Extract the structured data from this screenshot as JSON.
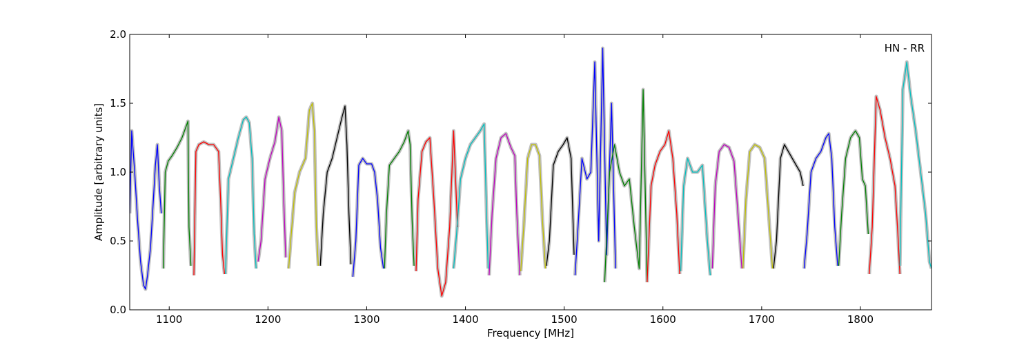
{
  "chart_data": {
    "type": "line",
    "title": "",
    "xlabel": "Frequency [MHz]",
    "ylabel": "Amplitude [arbitrary units]",
    "annotation": "HN - RR",
    "xlim": [
      1060,
      1872
    ],
    "ylim": [
      0.0,
      2.0
    ],
    "x_ticks": [
      1100,
      1200,
      1300,
      1400,
      1500,
      1600,
      1700,
      1800
    ],
    "x_tick_labels": [
      "1100",
      "1200",
      "1300",
      "1400",
      "1500",
      "1600",
      "1700",
      "1800"
    ],
    "y_ticks": [
      0.0,
      0.5,
      1.0,
      1.5,
      2.0
    ],
    "y_tick_labels": [
      "0.0",
      "0.5",
      "1.0",
      "1.5",
      "2.0"
    ],
    "grid": false,
    "background_trace_color": "#c0c0c0",
    "series": [
      {
        "color": "#0000ff",
        "x": [
          1060,
          1062,
          1065,
          1068,
          1071,
          1074,
          1076,
          1078,
          1081,
          1084,
          1086,
          1088,
          1090,
          1092
        ],
        "y": [
          0.7,
          1.3,
          1.0,
          0.65,
          0.35,
          0.18,
          0.15,
          0.25,
          0.45,
          0.8,
          1.05,
          1.2,
          0.9,
          0.7
        ]
      },
      {
        "color": "#008000",
        "x": [
          1094,
          1096,
          1099,
          1103,
          1108,
          1113,
          1117,
          1119,
          1120,
          1122
        ],
        "y": [
          0.3,
          1.0,
          1.08,
          1.12,
          1.18,
          1.25,
          1.33,
          1.37,
          0.6,
          0.32
        ]
      },
      {
        "color": "#ff0000",
        "x": [
          1125,
          1127,
          1130,
          1135,
          1140,
          1145,
          1150,
          1152,
          1154,
          1156
        ],
        "y": [
          0.25,
          1.15,
          1.2,
          1.22,
          1.2,
          1.2,
          1.15,
          0.8,
          0.4,
          0.26
        ]
      },
      {
        "color": "#00bfbf",
        "x": [
          1157,
          1160,
          1165,
          1170,
          1175,
          1178,
          1181,
          1184,
          1186,
          1188
        ],
        "y": [
          0.26,
          0.95,
          1.1,
          1.25,
          1.38,
          1.4,
          1.36,
          1.1,
          0.55,
          0.3
        ]
      },
      {
        "color": "#bf00bf",
        "x": [
          1190,
          1193,
          1197,
          1202,
          1207,
          1211,
          1214,
          1216,
          1218
        ],
        "y": [
          0.35,
          0.5,
          0.95,
          1.1,
          1.22,
          1.4,
          1.3,
          0.8,
          0.38
        ]
      },
      {
        "color": "#bfbf00",
        "x": [
          1221,
          1223,
          1227,
          1232,
          1238,
          1242,
          1245,
          1247,
          1249,
          1251
        ],
        "y": [
          0.3,
          0.5,
          0.85,
          1.0,
          1.1,
          1.45,
          1.5,
          1.3,
          0.6,
          0.32
        ]
      },
      {
        "color": "#000000",
        "x": [
          1253,
          1256,
          1260,
          1265,
          1270,
          1275,
          1278,
          1280,
          1282,
          1284
        ],
        "y": [
          0.32,
          0.7,
          1.0,
          1.1,
          1.25,
          1.4,
          1.48,
          1.2,
          0.7,
          0.33
        ]
      },
      {
        "color": "#0000ff",
        "x": [
          1286,
          1289,
          1292,
          1296,
          1300,
          1305,
          1308,
          1311,
          1314,
          1317
        ],
        "y": [
          0.24,
          0.5,
          1.05,
          1.1,
          1.06,
          1.06,
          1.0,
          0.8,
          0.45,
          0.3
        ]
      },
      {
        "color": "#008000",
        "x": [
          1318,
          1320,
          1323,
          1328,
          1333,
          1338,
          1342,
          1344,
          1346,
          1348
        ],
        "y": [
          0.3,
          0.7,
          1.05,
          1.1,
          1.15,
          1.22,
          1.3,
          1.2,
          0.65,
          0.32
        ]
      },
      {
        "color": "#ff0000",
        "x": [
          1350,
          1352,
          1356,
          1360,
          1364,
          1368,
          1372,
          1376,
          1380,
          1384,
          1388,
          1392
        ],
        "y": [
          0.28,
          0.8,
          1.15,
          1.22,
          1.25,
          0.8,
          0.3,
          0.1,
          0.2,
          0.6,
          1.3,
          0.6
        ]
      },
      {
        "color": "#00bfbf",
        "x": [
          1388,
          1391,
          1395,
          1400,
          1405,
          1410,
          1415,
          1419,
          1421,
          1423
        ],
        "y": [
          0.3,
          0.55,
          0.95,
          1.1,
          1.2,
          1.25,
          1.3,
          1.35,
          0.8,
          0.3
        ]
      },
      {
        "color": "#bf00bf",
        "x": [
          1424,
          1427,
          1431,
          1436,
          1441,
          1446,
          1450,
          1452,
          1455
        ],
        "y": [
          0.25,
          0.7,
          1.1,
          1.25,
          1.28,
          1.18,
          1.12,
          0.7,
          0.25
        ]
      },
      {
        "color": "#bfbf00",
        "x": [
          1456,
          1459,
          1463,
          1467,
          1471,
          1475,
          1478,
          1481
        ],
        "y": [
          0.28,
          0.6,
          1.1,
          1.2,
          1.2,
          1.12,
          0.65,
          0.3
        ]
      },
      {
        "color": "#000000",
        "x": [
          1482,
          1485,
          1489,
          1494,
          1499,
          1503,
          1507,
          1510
        ],
        "y": [
          0.32,
          0.5,
          1.05,
          1.15,
          1.2,
          1.25,
          1.1,
          0.4
        ]
      },
      {
        "color": "#0000ff",
        "x": [
          1511,
          1514,
          1518,
          1523,
          1527,
          1531,
          1535,
          1539,
          1543,
          1548,
          1552
        ],
        "y": [
          0.25,
          0.6,
          1.1,
          0.95,
          1.0,
          1.8,
          0.5,
          1.9,
          0.4,
          1.5,
          0.3
        ]
      },
      {
        "color": "#008000",
        "x": [
          1541,
          1546,
          1551,
          1556,
          1561,
          1566,
          1571,
          1576,
          1580,
          1584
        ],
        "y": [
          0.2,
          1.0,
          1.2,
          1.0,
          0.9,
          0.95,
          0.6,
          0.3,
          1.6,
          0.2
        ]
      },
      {
        "color": "#ff0000",
        "x": [
          1584,
          1588,
          1592,
          1597,
          1602,
          1606,
          1610,
          1614,
          1617
        ],
        "y": [
          0.2,
          0.9,
          1.05,
          1.15,
          1.2,
          1.3,
          1.1,
          0.7,
          0.26
        ]
      },
      {
        "color": "#00bfbf",
        "x": [
          1618,
          1621,
          1625,
          1630,
          1635,
          1640,
          1645,
          1648
        ],
        "y": [
          0.28,
          0.9,
          1.1,
          1.0,
          1.0,
          1.05,
          0.5,
          0.25
        ]
      },
      {
        "color": "#bf00bf",
        "x": [
          1650,
          1653,
          1657,
          1662,
          1667,
          1672,
          1676,
          1680
        ],
        "y": [
          0.3,
          0.9,
          1.15,
          1.2,
          1.18,
          1.08,
          0.7,
          0.3
        ]
      },
      {
        "color": "#bfbf00",
        "x": [
          1681,
          1684,
          1688,
          1693,
          1698,
          1703,
          1707,
          1711
        ],
        "y": [
          0.3,
          0.8,
          1.15,
          1.2,
          1.18,
          1.1,
          0.7,
          0.3
        ]
      },
      {
        "color": "#000000",
        "x": [
          1712,
          1715,
          1719,
          1723,
          1727,
          1731,
          1735,
          1739,
          1742
        ],
        "y": [
          0.3,
          0.5,
          1.1,
          1.2,
          1.15,
          1.1,
          1.05,
          1.0,
          0.9
        ]
      },
      {
        "color": "#0000ff",
        "x": [
          1743,
          1746,
          1750,
          1755,
          1760,
          1765,
          1768,
          1771,
          1774,
          1777
        ],
        "y": [
          0.3,
          0.55,
          1.0,
          1.1,
          1.15,
          1.25,
          1.28,
          1.1,
          0.6,
          0.32
        ]
      },
      {
        "color": "#008000",
        "x": [
          1778,
          1781,
          1785,
          1790,
          1795,
          1799,
          1802,
          1805,
          1808
        ],
        "y": [
          0.32,
          0.7,
          1.1,
          1.25,
          1.3,
          1.25,
          0.95,
          0.9,
          0.55
        ]
      },
      {
        "color": "#ff0000",
        "x": [
          1809,
          1812,
          1816,
          1820,
          1825,
          1830,
          1835,
          1838,
          1840
        ],
        "y": [
          0.26,
          0.6,
          1.55,
          1.45,
          1.25,
          1.1,
          0.9,
          0.55,
          0.26
        ]
      },
      {
        "color": "#00bfbf",
        "x": [
          1840,
          1843,
          1847,
          1851,
          1856,
          1861,
          1866,
          1870,
          1872
        ],
        "y": [
          0.32,
          1.6,
          1.8,
          1.55,
          1.3,
          1.0,
          0.7,
          0.35,
          0.3
        ]
      }
    ]
  }
}
